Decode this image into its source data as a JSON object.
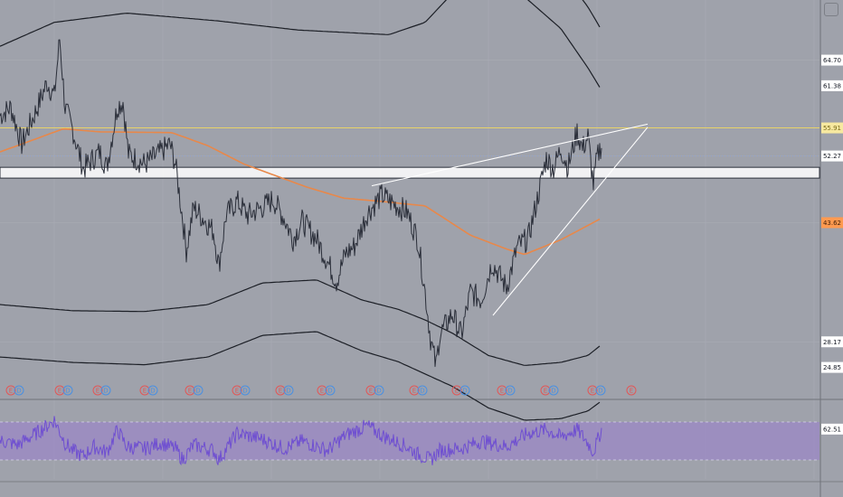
{
  "chart_data": [
    {
      "type": "line",
      "panel": "price",
      "ylim": [
        20.7,
        72.5
      ],
      "x_bars": 665,
      "price_axis_labels": [
        {
          "value": 64.7,
          "text": "64.70",
          "bg": "#ffffff",
          "fg": "#131722"
        },
        {
          "value": 61.38,
          "text": "61.38",
          "bg": "#ffffff",
          "fg": "#131722"
        },
        {
          "value": 55.91,
          "text": "55.91",
          "bg": "#f7e9a0",
          "fg": "#7a6a1a"
        },
        {
          "value": 52.27,
          "text": "52.27",
          "bg": "#ffffff",
          "fg": "#131722"
        },
        {
          "value": 43.62,
          "text": "43.62",
          "bg": "#ff9a50",
          "fg": "#3a1e08"
        },
        {
          "value": 28.17,
          "text": "28.17",
          "bg": "#ffffff",
          "fg": "#131722"
        },
        {
          "value": 24.85,
          "text": "24.85",
          "bg": "#ffffff",
          "fg": "#131722"
        }
      ],
      "horizontal_lines": [
        {
          "value": 55.91,
          "color": "#e8d36a"
        },
        {
          "value": 52.27,
          "color": "#8fa3cf",
          "dotted": true
        }
      ],
      "zone": {
        "from": 49.4,
        "to": 50.8,
        "color": "#ffffff"
      },
      "series": [
        {
          "role": "price",
          "color": "#2a2e39",
          "anchors": [
            [
              0,
              57.5
            ],
            [
              12,
              58.6
            ],
            [
              24,
              53.8
            ],
            [
              40,
              58.2
            ],
            [
              52,
              61.8
            ],
            [
              60,
              60
            ],
            [
              66,
              67.5
            ],
            [
              72,
              58.5
            ],
            [
              80,
              55.8
            ],
            [
              92,
              50.6
            ],
            [
              110,
              52.8
            ],
            [
              118,
              50.8
            ],
            [
              130,
              58.8
            ],
            [
              136,
              59.3
            ],
            [
              142,
              52.5
            ],
            [
              160,
              51.2
            ],
            [
              178,
              52.8
            ],
            [
              188,
              53.8
            ],
            [
              194,
              51.2
            ],
            [
              202,
              44
            ],
            [
              206,
              40
            ],
            [
              214,
              45.6
            ],
            [
              226,
              44
            ],
            [
              236,
              42.5
            ],
            [
              242,
              38
            ],
            [
              250,
              44.6
            ],
            [
              262,
              46.4
            ],
            [
              274,
              44.6
            ],
            [
              290,
              45.6
            ],
            [
              302,
              46.6
            ],
            [
              314,
              44.2
            ],
            [
              324,
              41.5
            ],
            [
              334,
              43.8
            ],
            [
              350,
              41.5
            ],
            [
              362,
              38.6
            ],
            [
              372,
              36
            ],
            [
              382,
              39.6
            ],
            [
              392,
              40.6
            ],
            [
              406,
              44.8
            ],
            [
              422,
              47.2
            ],
            [
              436,
              46
            ],
            [
              450,
              45
            ],
            [
              462,
              41.4
            ],
            [
              470,
              34.6
            ],
            [
              476,
              28.6
            ],
            [
              482,
              25
            ],
            [
              486,
              29
            ],
            [
              500,
              31.8
            ],
            [
              510,
              29
            ],
            [
              520,
              34.6
            ],
            [
              532,
              33.6
            ],
            [
              544,
              38.4
            ],
            [
              560,
              35.2
            ],
            [
              572,
              40.5
            ],
            [
              584,
              41.6
            ],
            [
              592,
              45.6
            ],
            [
              604,
              52
            ],
            [
              612,
              50.6
            ],
            [
              620,
              53.2
            ],
            [
              628,
              50.8
            ],
            [
              638,
              55.4
            ],
            [
              644,
              53.2
            ],
            [
              650,
              54.8
            ],
            [
              656,
              48.6
            ],
            [
              660,
              52
            ],
            [
              665,
              53.8
            ]
          ]
        },
        {
          "role": "moving-average",
          "color": "#e8884a",
          "anchors": [
            [
              0,
              52.8
            ],
            [
              40,
              54.5
            ],
            [
              70,
              55.8
            ],
            [
              110,
              55.4
            ],
            [
              190,
              55.3
            ],
            [
              230,
              53.6
            ],
            [
              270,
              51.2
            ],
            [
              340,
              48.2
            ],
            [
              380,
              46.8
            ],
            [
              420,
              46.4
            ],
            [
              470,
              45.8
            ],
            [
              520,
              42
            ],
            [
              560,
              40.2
            ],
            [
              580,
              39.5
            ],
            [
              620,
              41.4
            ],
            [
              665,
              44.2
            ]
          ]
        },
        {
          "role": "upper-outer-band",
          "color": "#1c1f26",
          "anchors": [
            [
              0,
              73.8
            ],
            [
              60,
              77
            ],
            [
              140,
              78.5
            ],
            [
              240,
              77.4
            ],
            [
              330,
              76.5
            ],
            [
              430,
              75.8
            ],
            [
              470,
              77.5
            ],
            [
              510,
              82.2
            ],
            [
              540,
              82.4
            ],
            [
              580,
              80.5
            ],
            [
              620,
              76.3
            ],
            [
              650,
              71.6
            ],
            [
              665,
              68.6
            ]
          ]
        },
        {
          "role": "upper-inner-band",
          "color": "#1c1f26",
          "anchors": [
            [
              0,
              66.5
            ],
            [
              60,
              69.6
            ],
            [
              140,
              70.8
            ],
            [
              240,
              69.8
            ],
            [
              330,
              68.6
            ],
            [
              430,
              68
            ],
            [
              470,
              69.6
            ],
            [
              510,
              74.6
            ],
            [
              540,
              74.8
            ],
            [
              580,
              72.9
            ],
            [
              620,
              68.8
            ],
            [
              650,
              63.7
            ],
            [
              665,
              60.8
            ]
          ]
        },
        {
          "role": "lower-inner-band",
          "color": "#1c1f26",
          "anchors": [
            [
              0,
              33
            ],
            [
              80,
              32.2
            ],
            [
              160,
              32.1
            ],
            [
              230,
              33
            ],
            [
              290,
              35.8
            ],
            [
              350,
              36.2
            ],
            [
              400,
              33.6
            ],
            [
              440,
              32.4
            ],
            [
              470,
              31
            ],
            [
              500,
              29.3
            ],
            [
              540,
              26.4
            ],
            [
              580,
              25.1
            ],
            [
              620,
              25.5
            ],
            [
              650,
              26.4
            ],
            [
              665,
              27.8
            ]
          ]
        },
        {
          "role": "lower-outer-band",
          "color": "#1c1f26",
          "anchors": [
            [
              0,
              26.2
            ],
            [
              80,
              25.5
            ],
            [
              160,
              25.2
            ],
            [
              230,
              26.2
            ],
            [
              290,
              29
            ],
            [
              350,
              29.5
            ],
            [
              400,
              27
            ],
            [
              440,
              25.6
            ],
            [
              470,
              24
            ],
            [
              500,
              22.4
            ],
            [
              540,
              19.6
            ],
            [
              580,
              18
            ],
            [
              620,
              18.2
            ],
            [
              650,
              19.2
            ],
            [
              665,
              20.5
            ]
          ]
        }
      ],
      "trendlines": [
        {
          "color": "#ffffff",
          "points": [
            [
              411,
              48.4
            ],
            [
              716,
              56.4
            ]
          ]
        },
        {
          "color": "#ffffff",
          "points": [
            [
              545,
              31.6
            ],
            [
              716,
              56
            ]
          ]
        }
      ],
      "event_markers": [
        {
          "x": 12,
          "kinds": [
            "E",
            "D"
          ]
        },
        {
          "x": 66,
          "kinds": [
            "E",
            "D"
          ]
        },
        {
          "x": 108,
          "kinds": [
            "E",
            "D"
          ]
        },
        {
          "x": 160,
          "kinds": [
            "E",
            "D"
          ]
        },
        {
          "x": 210,
          "kinds": [
            "E",
            "D"
          ]
        },
        {
          "x": 262,
          "kinds": [
            "E",
            "D"
          ]
        },
        {
          "x": 310,
          "kinds": [
            "E",
            "D"
          ]
        },
        {
          "x": 356,
          "kinds": [
            "E",
            "D"
          ]
        },
        {
          "x": 410,
          "kinds": [
            "E",
            "D"
          ]
        },
        {
          "x": 458,
          "kinds": [
            "E",
            "D"
          ]
        },
        {
          "x": 505,
          "kinds": [
            "E",
            "D"
          ]
        },
        {
          "x": 555,
          "kinds": [
            "E",
            "D"
          ]
        },
        {
          "x": 603,
          "kinds": [
            "E",
            "D"
          ]
        },
        {
          "x": 655,
          "kinds": [
            "E",
            "D"
          ]
        },
        {
          "x": 698,
          "kinds": [
            "E"
          ]
        }
      ]
    },
    {
      "type": "line",
      "panel": "oscillator",
      "ylim": [
        10,
        90
      ],
      "levels": [
        70,
        30
      ],
      "band_color": "#9b86c8",
      "current_value_label": {
        "value": 62.51,
        "text": "62.51",
        "bg": "#ffffff",
        "fg": "#131722"
      },
      "series": [
        {
          "role": "oscillator",
          "color": "#6f4fd1",
          "anchors": [
            [
              0,
              50
            ],
            [
              20,
              46
            ],
            [
              40,
              58
            ],
            [
              52,
              66
            ],
            [
              60,
              72
            ],
            [
              66,
              60
            ],
            [
              72,
              48
            ],
            [
              80,
              40
            ],
            [
              92,
              34
            ],
            [
              104,
              44
            ],
            [
              118,
              38
            ],
            [
              130,
              62
            ],
            [
              140,
              44
            ],
            [
              160,
              42
            ],
            [
              178,
              48
            ],
            [
              194,
              42
            ],
            [
              202,
              30
            ],
            [
              214,
              46
            ],
            [
              236,
              40
            ],
            [
              242,
              30
            ],
            [
              262,
              58
            ],
            [
              290,
              52
            ],
            [
              314,
              42
            ],
            [
              334,
              50
            ],
            [
              362,
              40
            ],
            [
              382,
              56
            ],
            [
              406,
              66
            ],
            [
              422,
              56
            ],
            [
              450,
              44
            ],
            [
              462,
              36
            ],
            [
              476,
              30
            ],
            [
              486,
              40
            ],
            [
              510,
              42
            ],
            [
              532,
              50
            ],
            [
              560,
              44
            ],
            [
              584,
              58
            ],
            [
              604,
              62
            ],
            [
              620,
              54
            ],
            [
              638,
              62
            ],
            [
              650,
              48
            ],
            [
              656,
              38
            ],
            [
              665,
              62
            ]
          ]
        }
      ]
    }
  ],
  "colors": {
    "background": "#9fa2ab",
    "grid": "#a9acb4",
    "separator": "#6f727a",
    "earnings_marker": "#e25757",
    "dividend_marker": "#4a90e2"
  }
}
